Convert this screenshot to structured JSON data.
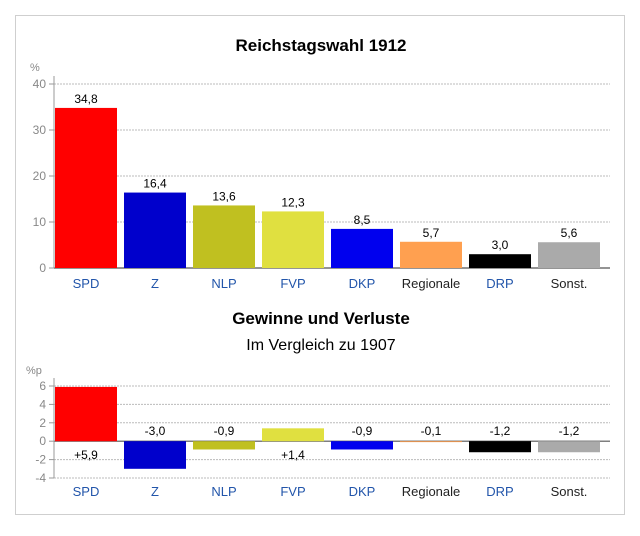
{
  "chart_data": [
    {
      "type": "bar",
      "title": "Reichstagswahl 1912",
      "ylabel": "%",
      "ylim": [
        0,
        40
      ],
      "yticks": [
        "0",
        "10",
        "20",
        "30",
        "40"
      ],
      "categories": [
        "SPD",
        "Z",
        "NLP",
        "FVP",
        "DKP",
        "Regionale",
        "DRP",
        "Sonst."
      ],
      "values": [
        34.8,
        16.4,
        13.6,
        12.3,
        8.5,
        5.7,
        3.0,
        5.6
      ],
      "value_labels": [
        "34,8",
        "16,4",
        "13,6",
        "12,3",
        "8,5",
        "5,7",
        "3,0",
        "5,6"
      ],
      "colors": [
        "#ff0000",
        "#0000cc",
        "#c0c020",
        "#e0e040",
        "#0000ee",
        "#ffa050",
        "#000000",
        "#aaaaaa"
      ],
      "category_label_colors": [
        "#2255aa",
        "#2255aa",
        "#2255aa",
        "#2255aa",
        "#2255aa",
        "#222222",
        "#2255aa",
        "#222222"
      ],
      "grid": true
    },
    {
      "type": "bar",
      "title": "Gewinne und Verluste",
      "subtitle": "Im Vergleich zu 1907",
      "ylabel": "%p",
      "ylim": [
        -4,
        6
      ],
      "yticks": [
        "-4",
        "-2",
        "0",
        "2",
        "4",
        "6"
      ],
      "categories": [
        "SPD",
        "Z",
        "NLP",
        "FVP",
        "DKP",
        "Regionale",
        "DRP",
        "Sonst."
      ],
      "values": [
        5.9,
        -3.0,
        -0.9,
        1.4,
        -0.9,
        -0.1,
        -1.2,
        -1.2
      ],
      "value_labels": [
        "+5,9",
        "-3,0",
        "-0,9",
        "+1,4",
        "-0,9",
        "-0,1",
        "-1,2",
        "-1,2"
      ],
      "colors": [
        "#ff0000",
        "#0000cc",
        "#c0c020",
        "#e0e040",
        "#0000ee",
        "#ffa050",
        "#000000",
        "#aaaaaa"
      ],
      "category_label_colors": [
        "#2255aa",
        "#2255aa",
        "#2255aa",
        "#2255aa",
        "#2255aa",
        "#222222",
        "#2255aa",
        "#222222"
      ],
      "grid": true
    }
  ]
}
